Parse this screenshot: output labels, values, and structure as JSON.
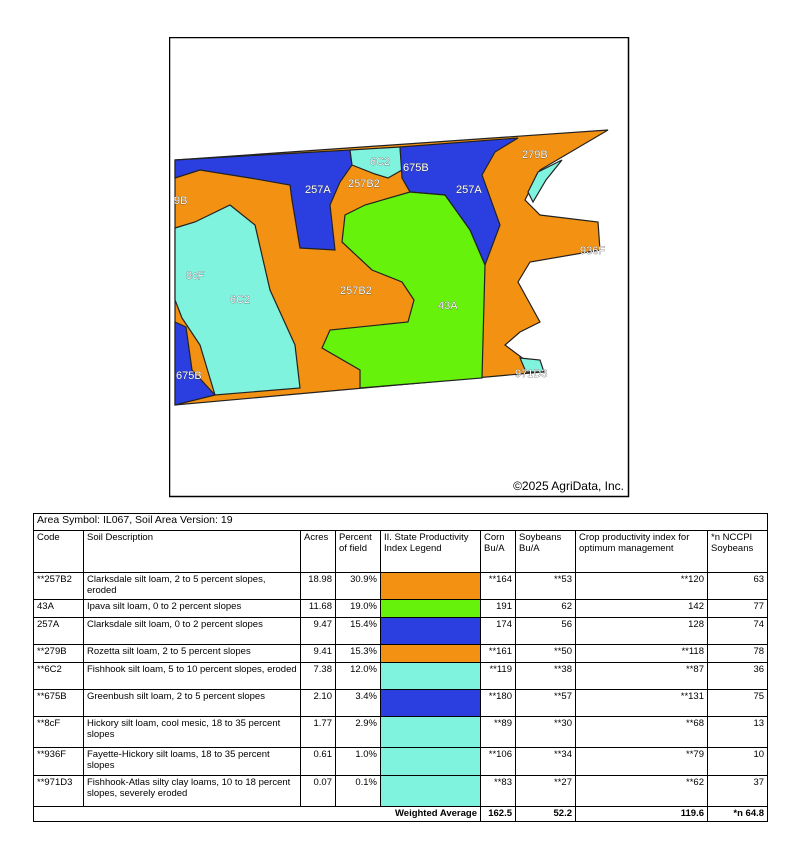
{
  "map": {
    "labels": [
      "6C2",
      "257B2",
      "675B",
      "257A",
      "257A",
      "279B",
      "9B",
      "936F",
      "8cF",
      "6C2",
      "257B2",
      "43A",
      "675B",
      "971D3"
    ],
    "copyright": "©2025 AgriData, Inc."
  },
  "table": {
    "title": "Area Symbol: IL067, Soil Area Version: 19",
    "headers": [
      "Code",
      "Soil Description",
      "Acres",
      "Percent of field",
      "II. State Productivity Index Legend",
      "Corn Bu/A",
      "Soybeans Bu/A",
      "Crop productivity index for optimum management",
      "*n NCCPI Soybeans"
    ],
    "rows": [
      {
        "code": "**257B2",
        "description": "Clarksdale silt loam, 2 to 5 percent slopes, eroded",
        "acres": "18.98",
        "percent": "30.9%",
        "color": "#f39113",
        "corn": "**164",
        "soybeans": "**53",
        "crop_index": "**120",
        "nccpi": "63"
      },
      {
        "code": "43A",
        "description": "Ipava silt loam, 0 to 2 percent slopes",
        "acres": "11.68",
        "percent": "19.0%",
        "color": "#66f20a",
        "corn": "191",
        "soybeans": "62",
        "crop_index": "142",
        "nccpi": "77"
      },
      {
        "code": "257A",
        "description": "Clarksdale silt loam, 0 to 2 percent slopes",
        "acres": "9.47",
        "percent": "15.4%",
        "color": "#2b3fe0",
        "corn": "174",
        "soybeans": "56",
        "crop_index": "128",
        "nccpi": "74"
      },
      {
        "code": "**279B",
        "description": "Rozetta silt loam, 2 to 5 percent slopes",
        "acres": "9.41",
        "percent": "15.3%",
        "color": "#f39113",
        "corn": "**161",
        "soybeans": "**50",
        "crop_index": "**118",
        "nccpi": "78"
      },
      {
        "code": "**6C2",
        "description": "Fishhook silt loam, 5 to 10 percent slopes, eroded",
        "acres": "7.38",
        "percent": "12.0%",
        "color": "#80f3df",
        "corn": "**119",
        "soybeans": "**38",
        "crop_index": "**87",
        "nccpi": "36"
      },
      {
        "code": "**675B",
        "description": "Greenbush silt loam, 2 to 5 percent slopes",
        "acres": "2.10",
        "percent": "3.4%",
        "color": "#2b3fe0",
        "corn": "**180",
        "soybeans": "**57",
        "crop_index": "**131",
        "nccpi": "75"
      },
      {
        "code": "**8cF",
        "description": "Hickory silt loam, cool mesic, 18 to 35 percent slopes",
        "acres": "1.77",
        "percent": "2.9%",
        "color": "#80f3df",
        "corn": "**89",
        "soybeans": "**30",
        "crop_index": "**68",
        "nccpi": "13"
      },
      {
        "code": "**936F",
        "description": "Fayette-Hickory silt loams, 18 to 35 percent slopes",
        "acres": "0.61",
        "percent": "1.0%",
        "color": "#80f3df",
        "corn": "**106",
        "soybeans": "**34",
        "crop_index": "**79",
        "nccpi": "10"
      },
      {
        "code": "**971D3",
        "description": "Fishhook-Atlas silty clay loams, 10 to 18 percent slopes, severely eroded",
        "acres": "0.07",
        "percent": "0.1%",
        "color": "#80f3df",
        "corn": "**83",
        "soybeans": "**27",
        "crop_index": "**62",
        "nccpi": "37"
      }
    ],
    "footer": {
      "label": "Weighted Average",
      "corn": "162.5",
      "soybeans": "52.2",
      "crop_index": "119.6",
      "nccpi": "*n 64.8"
    }
  }
}
